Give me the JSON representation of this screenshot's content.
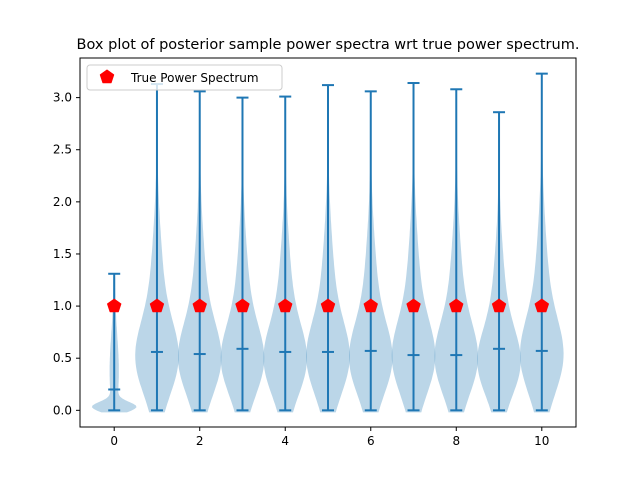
{
  "chart_data": {
    "type": "violin",
    "title": "Box plot of posterior sample power spectra wrt true power spectrum.",
    "xlabel": "",
    "ylabel": "",
    "xlim": [
      -0.8,
      10.8
    ],
    "ylim": [
      -0.16,
      3.38
    ],
    "xticks": [
      0,
      2,
      4,
      6,
      8,
      10
    ],
    "yticks": [
      0.0,
      0.5,
      1.0,
      1.5,
      2.0,
      2.5,
      3.0
    ],
    "xtick_labels": [
      "0",
      "2",
      "4",
      "6",
      "8",
      "10"
    ],
    "ytick_labels": [
      "0.0",
      "0.5",
      "1.0",
      "1.5",
      "2.0",
      "2.5",
      "3.0"
    ],
    "grid": false,
    "legend": {
      "position": "top-left",
      "entries": [
        "True Power Spectrum"
      ]
    },
    "colors": {
      "violin_fill": "#1f77b4",
      "violin_line": "#1f77b4",
      "true_marker": "#ff0000"
    },
    "violins": [
      {
        "x": 0,
        "min": 0.0,
        "max": 1.31,
        "median": 0.2
      },
      {
        "x": 1,
        "min": 0.0,
        "max": 3.13,
        "median": 0.56
      },
      {
        "x": 2,
        "min": 0.0,
        "max": 3.06,
        "median": 0.54
      },
      {
        "x": 3,
        "min": 0.0,
        "max": 3.0,
        "median": 0.59
      },
      {
        "x": 4,
        "min": 0.0,
        "max": 3.01,
        "median": 0.56
      },
      {
        "x": 5,
        "min": 0.0,
        "max": 3.12,
        "median": 0.56
      },
      {
        "x": 6,
        "min": 0.0,
        "max": 3.06,
        "median": 0.57
      },
      {
        "x": 7,
        "min": 0.0,
        "max": 3.14,
        "median": 0.53
      },
      {
        "x": 8,
        "min": 0.0,
        "max": 3.08,
        "median": 0.53
      },
      {
        "x": 9,
        "min": 0.0,
        "max": 2.86,
        "median": 0.59
      },
      {
        "x": 10,
        "min": 0.0,
        "max": 3.23,
        "median": 0.57
      }
    ],
    "true_power_spectrum": {
      "name": "True Power Spectrum",
      "x": [
        0,
        1,
        2,
        3,
        4,
        5,
        6,
        7,
        8,
        9,
        10
      ],
      "y": [
        1,
        1,
        1,
        1,
        1,
        1,
        1,
        1,
        1,
        1,
        1
      ]
    }
  }
}
